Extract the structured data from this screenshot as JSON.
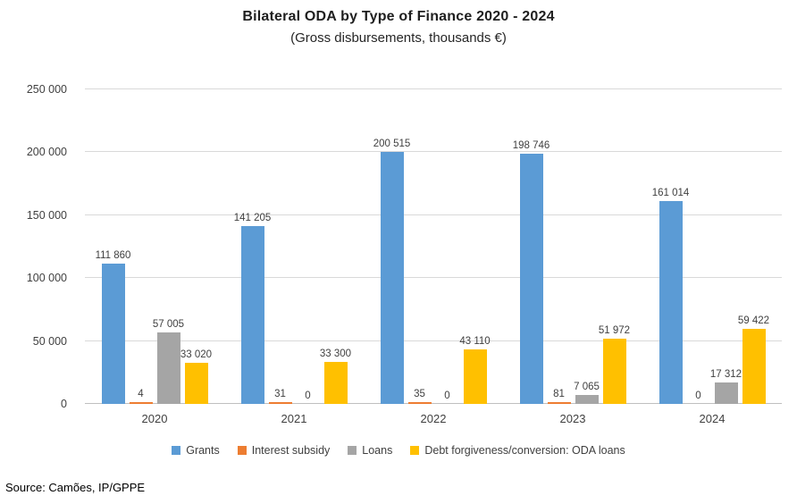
{
  "chart_data": {
    "type": "bar",
    "title": "Bilateral ODA by Type of Finance 2020 - 2024",
    "subtitle": "(Gross disbursements, thousands €)",
    "categories": [
      "2020",
      "2021",
      "2022",
      "2023",
      "2024"
    ],
    "series": [
      {
        "name": "Grants",
        "color": "#5B9BD5",
        "values": [
          111860,
          141205,
          200515,
          198746,
          161014
        ]
      },
      {
        "name": "Interest subsidy",
        "color": "#ED7D31",
        "values": [
          4,
          31,
          35,
          81,
          0
        ]
      },
      {
        "name": "Loans",
        "color": "#A5A5A5",
        "values": [
          57005,
          0,
          0,
          7065,
          17312
        ]
      },
      {
        "name": "Debt forgiveness/conversion: ODA loans",
        "color": "#FFC000",
        "values": [
          33020,
          33300,
          43110,
          51972,
          59422
        ]
      }
    ],
    "ylim": [
      0,
      250000
    ],
    "ytick_step": 50000,
    "grid": true,
    "legend_position": "bottom",
    "data_labels": true
  },
  "source": "Source: Camões, IP/GPPE"
}
